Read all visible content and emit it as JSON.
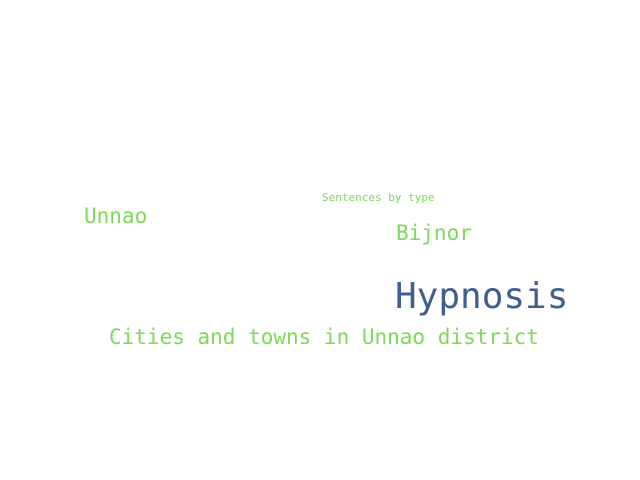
{
  "words": [
    {
      "text": "Sentences by type",
      "color": "#7ed957"
    },
    {
      "text": "Unnao",
      "color": "#7ed957"
    },
    {
      "text": "Bijnor",
      "color": "#7ed957"
    },
    {
      "text": "Hypnosis",
      "color": "#3f5f8f"
    },
    {
      "text": "Cities and towns in Unnao district",
      "color": "#7ed957"
    }
  ]
}
